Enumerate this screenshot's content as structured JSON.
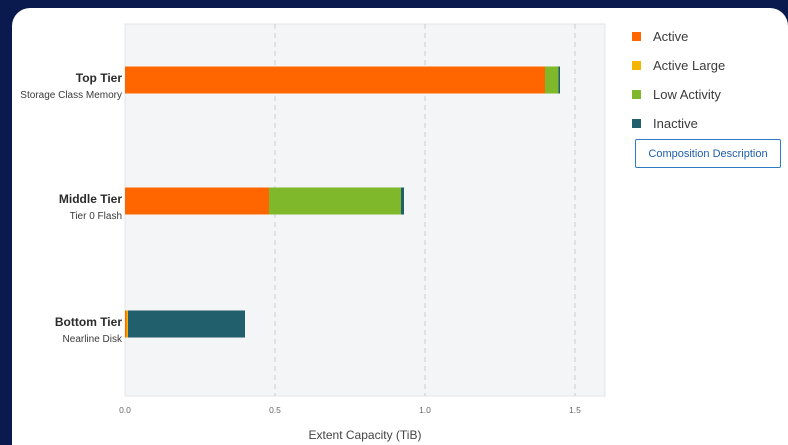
{
  "colors": {
    "Active": "#ff6600",
    "Active Large": "#f5b400",
    "Low Activity": "#7fb82a",
    "Inactive": "#225f6d"
  },
  "legend": {
    "items": [
      "Active",
      "Active Large",
      "Low Activity",
      "Inactive"
    ]
  },
  "button": {
    "label": "Composition Description"
  },
  "chart_data": {
    "type": "bar",
    "orientation": "horizontal",
    "stacked": true,
    "categories": [
      "Top Tier",
      "Middle Tier",
      "Bottom Tier"
    ],
    "category_sublabels": [
      "Storage Class Memory",
      "Tier 0 Flash",
      "Nearline Disk"
    ],
    "series": [
      {
        "name": "Active",
        "values": [
          1.4,
          0.48,
          0.005
        ]
      },
      {
        "name": "Active Large",
        "values": [
          0.0,
          0.0,
          0.005
        ]
      },
      {
        "name": "Low Activity",
        "values": [
          0.045,
          0.44,
          0.0
        ]
      },
      {
        "name": "Inactive",
        "values": [
          0.005,
          0.01,
          0.39
        ]
      }
    ],
    "xlabel": "Extent Capacity (TiB)",
    "ylabel": "",
    "xlim": [
      0,
      1.6
    ],
    "xticks": [
      "0.0",
      "0.5",
      "1.0",
      "1.5"
    ],
    "grid": "vertical-dashed",
    "legend_position": "right"
  }
}
